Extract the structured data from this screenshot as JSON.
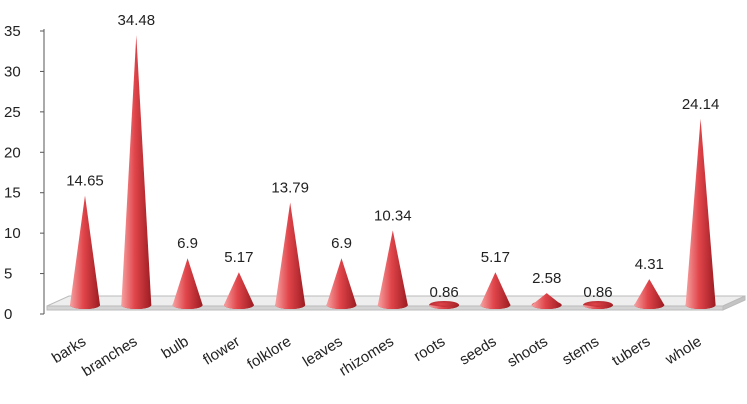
{
  "chart_data": {
    "type": "bar",
    "style": "3d-cone",
    "categories": [
      "barks",
      "branches",
      "bulb",
      "flower",
      "folklore",
      "leaves",
      "rhizomes",
      "roots",
      "seeds",
      "shoots",
      "stems",
      "tubers",
      "whole"
    ],
    "values": [
      14.65,
      34.48,
      6.9,
      5.17,
      13.79,
      6.9,
      10.34,
      0.86,
      5.17,
      2.58,
      0.86,
      4.31,
      24.14
    ],
    "value_labels": [
      "14.65",
      "34.48",
      "6.9",
      "5.17",
      "13.79",
      "6.9",
      "10.34",
      "0.86",
      "5.17",
      "2.58",
      "0.86",
      "4.31",
      "24.14"
    ],
    "ylim": [
      0,
      35
    ],
    "yticks": [
      "0",
      "5",
      "10",
      "15",
      "20",
      "25",
      "30",
      "35"
    ],
    "title": "",
    "xlabel": "",
    "ylabel": "",
    "grid": false,
    "legend": "none",
    "colors": {
      "cone_light": "#f7a1a1",
      "cone_mid": "#e0454a",
      "cone_dark": "#9c1c22",
      "floor_top": "#eeeeee",
      "floor_front": "#d4d4d4",
      "axis": "#555555"
    }
  }
}
